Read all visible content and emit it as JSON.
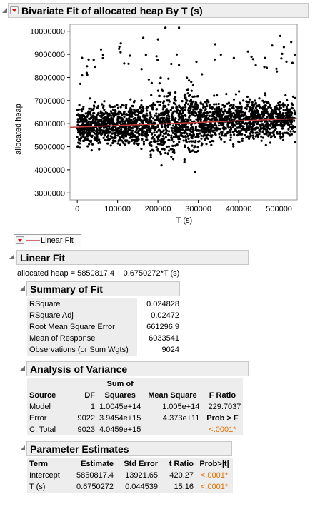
{
  "window": {
    "title": "Bivariate Fit of allocated heap By T (s)"
  },
  "chart_data": {
    "type": "scatter",
    "xlabel": "T (s)",
    "ylabel": "allocated heap",
    "xlim": [
      -18000,
      545000
    ],
    "ylim": [
      2700000,
      10300000
    ],
    "x_ticks": [
      0,
      100000,
      200000,
      300000,
      400000,
      500000
    ],
    "x_tick_labels": [
      "0",
      "100000",
      "200000",
      "300000",
      "400000",
      "500000"
    ],
    "y_ticks": [
      3000000,
      4000000,
      5000000,
      6000000,
      7000000,
      8000000,
      9000000,
      10000000
    ],
    "y_tick_labels": [
      "3000000",
      "4000000",
      "5000000",
      "6000000",
      "7000000",
      "8000000",
      "9000000",
      "10000000"
    ],
    "grid": false,
    "fit_line": {
      "intercept": 5850817.4,
      "slope": 0.6750272,
      "color": "#c84040"
    },
    "point_color": "#000000",
    "point_count": 9024
  },
  "legend": {
    "label": "Linear Fit",
    "line_color": "#c84040"
  },
  "linear_fit": {
    "title": "Linear Fit",
    "equation": "allocated heap = 5850817.4 + 0.6750272*T (s)"
  },
  "summary_of_fit": {
    "title": "Summary of Fit",
    "rows": [
      {
        "label": "RSquare",
        "value": "0.024828"
      },
      {
        "label": "RSquare Adj",
        "value": "0.02472"
      },
      {
        "label": "Root Mean Square Error",
        "value": "661296.9"
      },
      {
        "label": "Mean of Response",
        "value": "6033541"
      },
      {
        "label": "Observations (or Sum Wgts)",
        "value": "9024"
      }
    ]
  },
  "anova": {
    "title": "Analysis of Variance",
    "headers": {
      "source": "Source",
      "df": "DF",
      "ss_top": "Sum of",
      "ss_bottom": "Squares",
      "ms": "Mean Square",
      "f": "F Ratio"
    },
    "rows": [
      {
        "source": "Model",
        "df": "1",
        "ss": "1.0045e+14",
        "ms": "1.005e+14",
        "f": "229.7037"
      },
      {
        "source": "Error",
        "df": "9022",
        "ss": "3.9454e+15",
        "ms": "4.373e+11",
        "f": "Prob > F"
      },
      {
        "source": "C. Total",
        "df": "9023",
        "ss": "4.0459e+15",
        "ms": "",
        "f": "<.0001*"
      }
    ]
  },
  "parameter_estimates": {
    "title": "Parameter Estimates",
    "headers": {
      "term": "Term",
      "estimate": "Estimate",
      "se": "Std Error",
      "t": "t Ratio",
      "p": "Prob>|t|"
    },
    "rows": [
      {
        "term": "Intercept",
        "estimate": "5850817.4",
        "se": "13921.65",
        "t": "420.27",
        "p": "<.0001*"
      },
      {
        "term": "T (s)",
        "estimate": "0.6750272",
        "se": "0.044539",
        "t": "15.16",
        "p": "<.0001*"
      }
    ]
  },
  "colors": {
    "accent_red": "#cc1010",
    "significant": "#e07000",
    "header_bg": "#eeeeee"
  }
}
